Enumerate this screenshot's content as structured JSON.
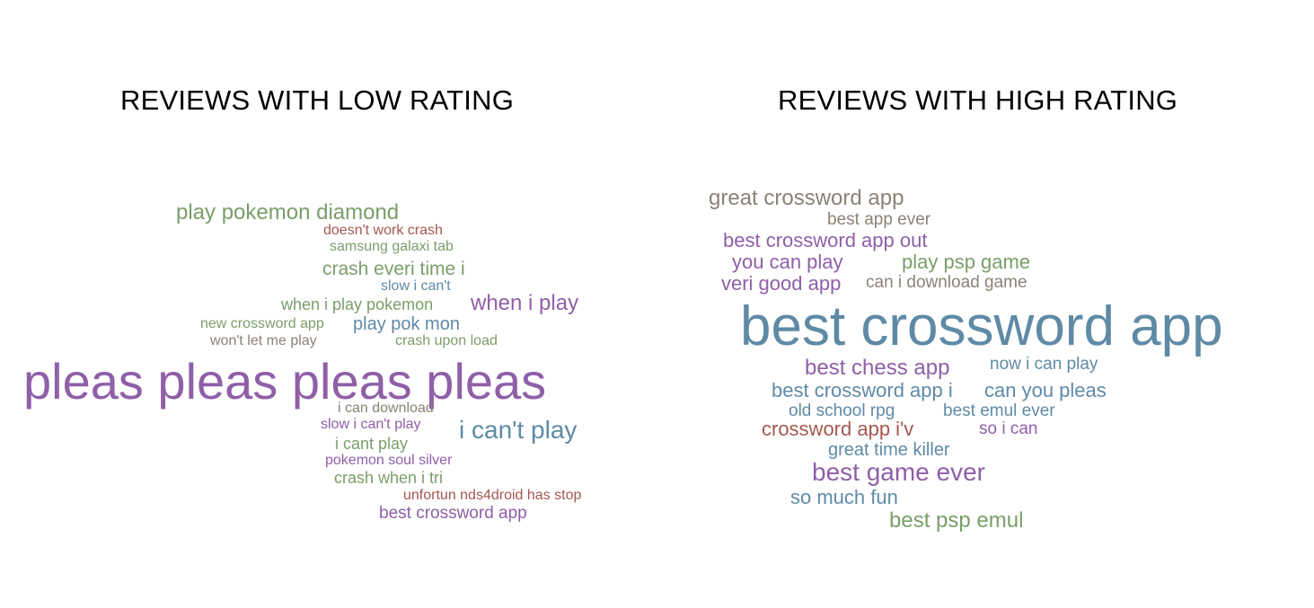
{
  "colors": {
    "green": "#7a9e6a",
    "purple": "#8f5fa8",
    "red": "#a4584f",
    "steelblue": "#5f8aa6",
    "gray": "#8a8377"
  },
  "low_rating": {
    "title": "REVIEWS WITH LOW RATING",
    "words": [
      {
        "text": "play pokemon diamond",
        "color": "green"
      },
      {
        "text": "doesn't work crash",
        "color": "red"
      },
      {
        "text": "samsung galaxi tab",
        "color": "green"
      },
      {
        "text": "crash everi time i",
        "color": "green"
      },
      {
        "text": "slow i can't",
        "color": "steelblue"
      },
      {
        "text": "when i play pokemon",
        "color": "green"
      },
      {
        "text": "when i play",
        "color": "purple"
      },
      {
        "text": "new crossword app",
        "color": "green"
      },
      {
        "text": "play pok mon",
        "color": "steelblue"
      },
      {
        "text": "won't let me play",
        "color": "gray"
      },
      {
        "text": "crash upon load",
        "color": "green"
      },
      {
        "text": "pleas pleas pleas pleas",
        "color": "purple"
      },
      {
        "text": "i can download",
        "color": "gray"
      },
      {
        "text": "slow i can't play",
        "color": "purple"
      },
      {
        "text": "i can't play",
        "color": "steelblue"
      },
      {
        "text": "i cant play",
        "color": "green"
      },
      {
        "text": "pokemon soul silver",
        "color": "purple"
      },
      {
        "text": "crash when i tri",
        "color": "green"
      },
      {
        "text": "unfortun nds4droid has stop",
        "color": "red"
      },
      {
        "text": "best crossword app",
        "color": "purple"
      }
    ]
  },
  "high_rating": {
    "title": "REVIEWS WITH HIGH RATING",
    "words": [
      {
        "text": "great crossword app",
        "color": "gray"
      },
      {
        "text": "best app ever",
        "color": "gray"
      },
      {
        "text": "best crossword app out",
        "color": "purple"
      },
      {
        "text": "you can play",
        "color": "purple"
      },
      {
        "text": "play psp game",
        "color": "green"
      },
      {
        "text": "veri good app",
        "color": "purple"
      },
      {
        "text": "can i download game",
        "color": "gray"
      },
      {
        "text": "best crossword app",
        "color": "steelblue"
      },
      {
        "text": "best chess app",
        "color": "purple"
      },
      {
        "text": "now i can play",
        "color": "steelblue"
      },
      {
        "text": "best crossword app i",
        "color": "steelblue"
      },
      {
        "text": "can you pleas",
        "color": "steelblue"
      },
      {
        "text": "old school rpg",
        "color": "steelblue"
      },
      {
        "text": "best emul ever",
        "color": "steelblue"
      },
      {
        "text": "crossword app i'v",
        "color": "red"
      },
      {
        "text": "so i can",
        "color": "purple"
      },
      {
        "text": "great time killer",
        "color": "steelblue"
      },
      {
        "text": "best game ever",
        "color": "purple"
      },
      {
        "text": "so much fun",
        "color": "steelblue"
      },
      {
        "text": "best psp emul",
        "color": "green"
      }
    ]
  }
}
